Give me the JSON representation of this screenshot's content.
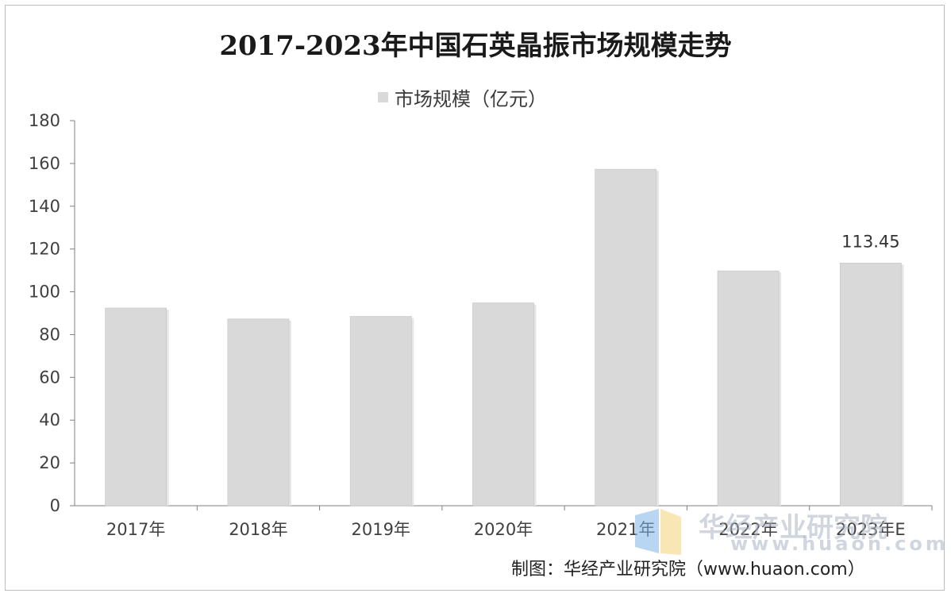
{
  "chart_data": {
    "type": "bar",
    "title": "2017-2023年中国石英晶振市场规模走势",
    "categories": [
      "2017年",
      "2018年",
      "2019年",
      "2020年",
      "2021年",
      "2022年",
      "2023年E"
    ],
    "series": [
      {
        "name": "市场规模（亿元）",
        "values": [
          92.4,
          87.3,
          88.5,
          94.8,
          157.3,
          109.8,
          113.45
        ]
      }
    ],
    "ylim": [
      0,
      180
    ],
    "yticks": [
      0,
      20,
      40,
      60,
      80,
      100,
      120,
      140,
      160,
      180
    ],
    "data_labels": [
      null,
      null,
      null,
      null,
      null,
      null,
      "113.45"
    ],
    "grid": false,
    "legend_position": "top-center",
    "colors": {
      "bar": "#d9d9d9",
      "bar_edge": "#c4c4c4",
      "axis": "#7f7f7f",
      "text": "#404040"
    }
  },
  "footer": {
    "source": "制图：华经产业研究院（www.huaon.com）"
  },
  "watermark": {
    "text": "华经产业研究院",
    "url": "www.huaon.com"
  }
}
